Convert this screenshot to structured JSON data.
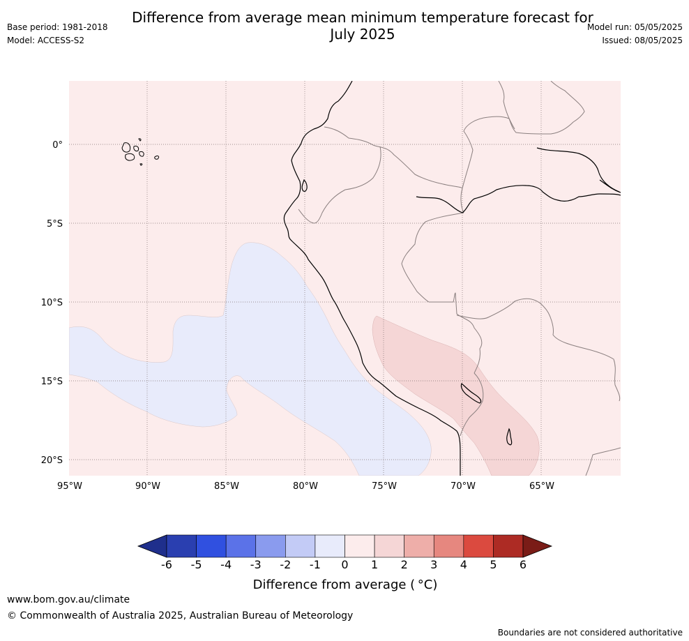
{
  "header": {
    "title_line1": "Difference from average mean minimum temperature forecast for",
    "title_line2": "July 2025",
    "base_period": "Base period: 1981-2018",
    "model": "Model: ACCESS-S2",
    "model_run": "Model run: 05/05/2025",
    "issued": "Issued: 08/05/2025"
  },
  "map": {
    "lat_labels": [
      "0°",
      "5°S",
      "10°S",
      "15°S",
      "20°S"
    ],
    "lon_labels": [
      "95°W",
      "90°W",
      "85°W",
      "80°W",
      "75°W",
      "70°W",
      "65°W"
    ],
    "background_category": "0 to 1",
    "anomaly_regions": [
      {
        "category": "-1 to 0",
        "description": "cool anomaly over ocean west of Peru"
      },
      {
        "category": "1 to 2",
        "description": "warm anomaly over southern Peru / western Bolivia"
      }
    ]
  },
  "colorbar": {
    "title": "Difference from average ( °C)",
    "ticks": [
      "-6",
      "-5",
      "-4",
      "-3",
      "-2",
      "-1",
      "0",
      "1",
      "2",
      "3",
      "4",
      "5",
      "6"
    ],
    "colors": [
      "#1f2f8c",
      "#2a3fb0",
      "#3050e0",
      "#5b72e8",
      "#8a9bee",
      "#c3cbf6",
      "#e8ebfb",
      "#fcecec",
      "#f5d6d6",
      "#eeaea9",
      "#e6877f",
      "#db4a3f",
      "#ad2b24",
      "#7a1c17"
    ]
  },
  "footer": {
    "website": "www.bom.gov.au/climate",
    "copyright": "© Commonwealth of Australia 2025, Australian Bureau of Meteorology",
    "disclaimer": "Boundaries are not considered authoritative"
  }
}
